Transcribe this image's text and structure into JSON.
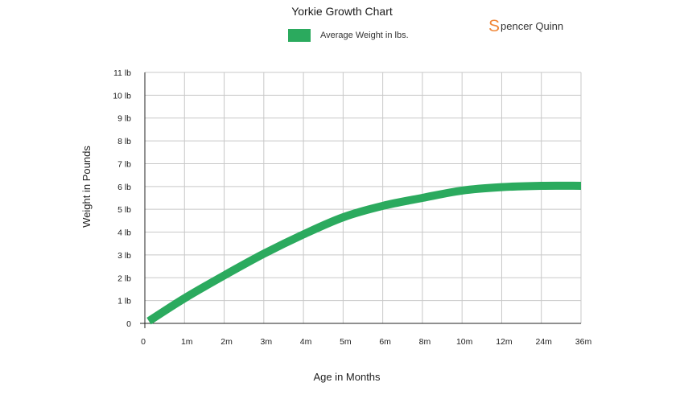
{
  "brand": {
    "mark": "S",
    "text": "pencer Quinn",
    "color": "#f0883a"
  },
  "chart_data": {
    "type": "line",
    "title": "Yorkie Growth Chart",
    "legend": {
      "label": "Average Weight in lbs.",
      "placement": "top"
    },
    "xlabel": "Age in Months",
    "ylabel": "Weight in Pounds",
    "categories": [
      "0",
      "1m",
      "2m",
      "3m",
      "4m",
      "5m",
      "6m",
      "8m",
      "10m",
      "12m",
      "24m",
      "36m"
    ],
    "y_ticks": [
      "0",
      "1 lb",
      "2 lb",
      "3 lb",
      "4 lb",
      "5 lb",
      "6 lb",
      "7 lb",
      "8 lb",
      "9 lb",
      "10 lb",
      "11 lb"
    ],
    "ylim": [
      0,
      11
    ],
    "grid": true,
    "series": [
      {
        "name": "Average Weight in lbs.",
        "color": "#2baa5e",
        "values": [
          0.1,
          1.1,
          2.1,
          3.05,
          3.9,
          4.65,
          5.15,
          5.5,
          5.82,
          5.97,
          6.03,
          6.03
        ]
      }
    ]
  }
}
